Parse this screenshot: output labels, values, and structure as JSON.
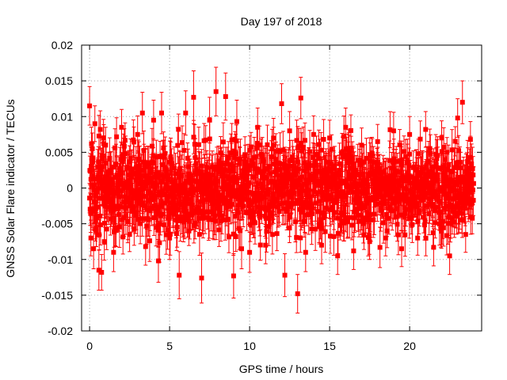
{
  "chart_data": {
    "type": "scatter",
    "title": "Day 197 of 2018",
    "xlabel": "GPS time / hours",
    "ylabel": "GNSS Solar Flare indicator / TECUs",
    "xlim": [
      -0.5,
      24.5
    ],
    "ylim": [
      -0.02,
      0.02
    ],
    "xticks": [
      0,
      5,
      10,
      15,
      20
    ],
    "xtick_labels": [
      "0",
      "5",
      "10",
      "15",
      "20"
    ],
    "yticks": [
      -0.02,
      -0.015,
      -0.01,
      -0.005,
      0,
      0.005,
      0.01,
      0.015,
      0.02
    ],
    "ytick_labels": [
      "-0.02",
      "-0.015",
      "-0.01",
      "-0.005",
      "0",
      "0.005",
      "0.01",
      "0.015",
      "0.02"
    ],
    "grid": true,
    "marker": "square",
    "error_bars": true,
    "series_color": "#ff0000",
    "series": [
      {
        "name": "GNSS Solar Flare indicator",
        "x": [
          0.0,
          0.08,
          0.17,
          0.25,
          0.33,
          0.42,
          0.5,
          0.58,
          0.67,
          0.75,
          0.83,
          0.92,
          1.0,
          1.5,
          2.0,
          2.5,
          3.0,
          3.3,
          3.5,
          4.0,
          4.3,
          4.5,
          5.0,
          5.6,
          6.0,
          6.5,
          7.0,
          7.5,
          7.9,
          8.5,
          9.0,
          9.2,
          9.5,
          10.0,
          10.5,
          11.0,
          11.5,
          12.0,
          12.2,
          12.5,
          13.0,
          13.2,
          13.5,
          14.0,
          14.5,
          15.0,
          15.5,
          16.0,
          16.5,
          17.0,
          17.5,
          18.0,
          18.5,
          19.0,
          19.5,
          20.0,
          20.5,
          21.0,
          21.5,
          22.0,
          22.5,
          23.0,
          23.3,
          23.5,
          23.8
        ],
        "y": [
          0.0115,
          -0.007,
          0.0055,
          -0.0085,
          0.009,
          -0.006,
          0.003,
          -0.0115,
          0.0082,
          -0.0118,
          0.0045,
          -0.0075,
          0.006,
          -0.009,
          0.0085,
          -0.0065,
          0.0075,
          0.0105,
          -0.0082,
          0.0095,
          -0.0102,
          0.0105,
          -0.007,
          -0.0122,
          0.0105,
          0.0127,
          -0.0126,
          0.0095,
          0.0135,
          0.0128,
          -0.0123,
          0.0093,
          -0.0085,
          -0.009,
          0.0085,
          -0.008,
          0.006,
          0.0118,
          -0.0122,
          0.008,
          -0.0148,
          0.0126,
          -0.009,
          0.0075,
          -0.008,
          0.007,
          -0.0095,
          0.0085,
          -0.0088,
          0.006,
          -0.0075,
          0.0065,
          -0.007,
          0.008,
          -0.0085,
          0.0075,
          -0.007,
          0.0082,
          -0.0083,
          0.007,
          -0.0095,
          0.0098,
          0.012,
          -0.0065,
          0.0068
        ],
        "yerr": [
          0.0027,
          0.0025,
          0.0022,
          0.0028,
          0.0025,
          0.0022,
          0.0024,
          0.0028,
          0.0026,
          0.0025,
          0.0022,
          0.0026,
          0.0025,
          0.0027,
          0.0025,
          0.0024,
          0.0026,
          0.0029,
          0.0026,
          0.0028,
          0.003,
          0.0029,
          0.003,
          0.0033,
          0.0031,
          0.0037,
          0.0035,
          0.0032,
          0.0034,
          0.0033,
          0.0031,
          0.003,
          0.0028,
          0.0028,
          0.0027,
          0.0026,
          0.0025,
          0.0028,
          0.003,
          0.0027,
          0.0027,
          0.0029,
          0.0027,
          0.0026,
          0.0026,
          0.0025,
          0.0026,
          0.0027,
          0.0026,
          0.0024,
          0.0025,
          0.0024,
          0.0025,
          0.0026,
          0.0025,
          0.0025,
          0.0024,
          0.0025,
          0.0026,
          0.0024,
          0.0026,
          0.0027,
          0.003,
          0.0025,
          0.0025
        ],
        "noise_band": {
          "description": "dense noise cloud of ~1440 one-minute samples with error bars",
          "x_range": [
            0,
            24
          ],
          "typical_amplitude": 0.0055,
          "typical_yerr": 0.0025,
          "count": 1440
        }
      }
    ]
  }
}
